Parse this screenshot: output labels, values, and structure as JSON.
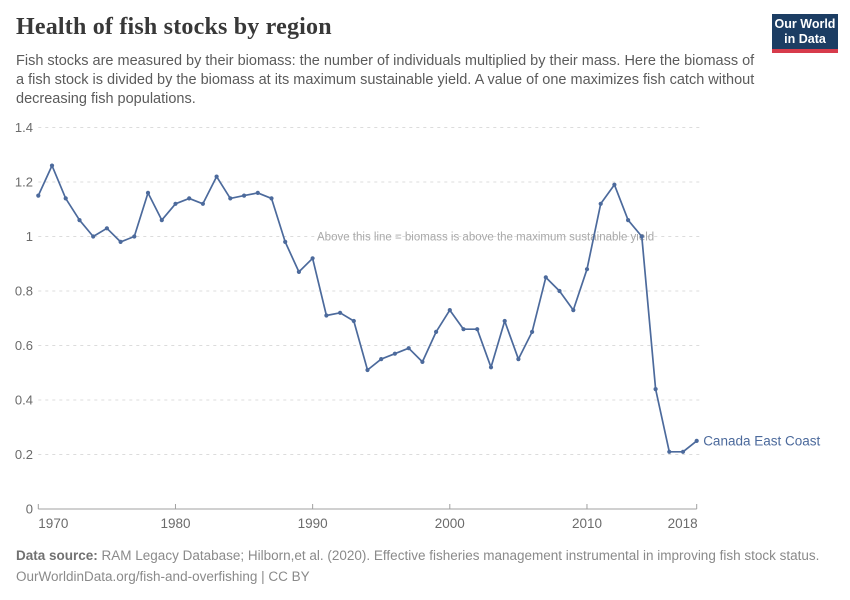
{
  "header": {
    "title": "Health of fish stocks by region",
    "subtitle": "Fish stocks are measured by their biomass: the number of individuals multiplied by their mass. Here the biomass of a fish stock is divided by the biomass at its maximum sustainable yield. A value of one maximizes fish catch without decreasing fish populations.",
    "logo": {
      "line1": "Our World",
      "line2": "in Data",
      "bg_color": "#1c3d63",
      "accent_color": "#d73b4b"
    }
  },
  "chart_data": {
    "type": "line",
    "title": "Health of fish stocks by region",
    "xlabel": "",
    "ylabel": "",
    "xlim": [
      1970,
      2018
    ],
    "ylim": [
      0,
      1.4
    ],
    "x_ticks": [
      1970,
      1980,
      1990,
      2000,
      2010,
      2018
    ],
    "y_ticks": [
      0,
      0.2,
      0.4,
      0.6,
      0.8,
      1,
      1.2,
      1.4
    ],
    "grid": true,
    "legend_position": "end-of-line",
    "annotation": "Above this line = biomass is above the maximum sustainable yield",
    "annotation_color": "#a9a9a9",
    "axis_color": "#a0a0a0",
    "tick_label_color": "#6b6b6b",
    "gridline_color": "#dcdcdc",
    "series": [
      {
        "name": "Canada East Coast",
        "color": "#4C6A9C",
        "x": [
          1970,
          1971,
          1972,
          1973,
          1974,
          1975,
          1976,
          1977,
          1978,
          1979,
          1980,
          1981,
          1982,
          1983,
          1984,
          1985,
          1986,
          1987,
          1988,
          1989,
          1990,
          1991,
          1992,
          1993,
          1994,
          1995,
          1996,
          1997,
          1998,
          1999,
          2000,
          2001,
          2002,
          2003,
          2004,
          2005,
          2006,
          2007,
          2008,
          2009,
          2010,
          2011,
          2012,
          2013,
          2014,
          2015,
          2016,
          2017,
          2018
        ],
        "values": [
          1.15,
          1.26,
          1.14,
          1.06,
          1.0,
          1.03,
          0.98,
          1.0,
          1.16,
          1.06,
          1.12,
          1.14,
          1.12,
          1.22,
          1.14,
          1.15,
          1.16,
          1.14,
          0.98,
          0.87,
          0.92,
          0.71,
          0.72,
          0.69,
          0.51,
          0.55,
          0.57,
          0.59,
          0.54,
          0.65,
          0.73,
          0.66,
          0.66,
          0.52,
          0.69,
          0.55,
          0.65,
          0.85,
          0.8,
          0.73,
          0.88,
          1.12,
          1.19,
          1.06,
          1.0,
          0.44,
          0.21,
          0.21,
          0.25
        ]
      }
    ]
  },
  "footer": {
    "datasource_label": "Data source:",
    "datasource_text": " RAM Legacy Database; Hilborn,et al. (2020). Effective fisheries management instrumental in improving fish stock status.",
    "link_line": "OurWorldinData.org/fish-and-overfishing | CC BY"
  }
}
